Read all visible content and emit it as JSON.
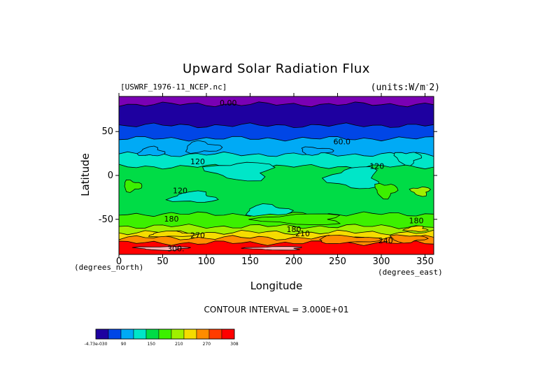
{
  "chart_data": {
    "type": "heatmap",
    "title": "Upward Solar Radiation Flux",
    "file_label": "[USWRF_1976-11_NCEP.nc]",
    "units_label": "(units:W/m^2)",
    "xlabel": "Longitude",
    "ylabel": "Latitude",
    "x_units_note": "(degrees_east)",
    "y_units_note": "(degrees_north)",
    "xlim": [
      0,
      360
    ],
    "ylim": [
      -90,
      90
    ],
    "x_ticks": [
      0,
      50,
      100,
      150,
      200,
      250,
      300,
      350
    ],
    "y_ticks": [
      50,
      0,
      -50
    ],
    "contour_note": "CONTOUR INTERVAL = 3.000E+01",
    "levels": [
      0,
      30,
      60,
      90,
      120,
      150,
      180,
      210,
      240,
      270,
      300
    ],
    "level_colors": [
      "#1e00a0",
      "#0046e6",
      "#00aaf5",
      "#00e6c8",
      "#00dc46",
      "#3cf000",
      "#a0f000",
      "#f5dc00",
      "#ff8c00",
      "#ff3c00",
      "#ff0000"
    ],
    "colorbar_labels": [
      "-4.73e-030",
      "90",
      "150",
      "210",
      "270",
      "308"
    ],
    "bands": [
      {
        "lat_top": 90,
        "lat_bottom": 81,
        "value": 0,
        "color": "#7a00b4"
      },
      {
        "lat_top": 81,
        "lat_bottom": 57,
        "value": 15,
        "color": "#1e00a0"
      },
      {
        "lat_top": 57,
        "lat_bottom": 42,
        "value": 45,
        "color": "#0046e6"
      },
      {
        "lat_top": 42,
        "lat_bottom": 24,
        "value": 75,
        "color": "#00aaf5"
      },
      {
        "lat_top": 24,
        "lat_bottom": 10,
        "value": 105,
        "color": "#00e6c8"
      },
      {
        "lat_top": 10,
        "lat_bottom": -44,
        "value": 135,
        "color": "#00dc46"
      },
      {
        "lat_top": -44,
        "lat_bottom": -58,
        "value": 165,
        "color": "#3cf000"
      },
      {
        "lat_top": -58,
        "lat_bottom": -65,
        "value": 195,
        "color": "#a0f000"
      },
      {
        "lat_top": -65,
        "lat_bottom": -71,
        "value": 225,
        "color": "#f5dc00"
      },
      {
        "lat_top": -71,
        "lat_bottom": -77,
        "value": 255,
        "color": "#ff8c00"
      },
      {
        "lat_top": -77,
        "lat_bottom": -90,
        "value": 285,
        "color": "#ff0000"
      }
    ],
    "patches": [
      {
        "lon": 37,
        "lat": 27,
        "rlon": 14,
        "rlat": 5,
        "value": 75,
        "color": "#00aaf5"
      },
      {
        "lon": 95,
        "lat": 32,
        "rlon": 20,
        "rlat": 6,
        "value": 75,
        "color": "#00aaf5"
      },
      {
        "lon": 225,
        "lat": 28,
        "rlon": 18,
        "rlat": 4,
        "value": 75,
        "color": "#00aaf5"
      },
      {
        "lon": 330,
        "lat": 20,
        "rlon": 14,
        "rlat": 7,
        "value": 105,
        "color": "#00e6c8"
      },
      {
        "lon": 140,
        "lat": 5,
        "rlon": 35,
        "rlat": 10,
        "value": 105,
        "color": "#00e6c8"
      },
      {
        "lon": 270,
        "lat": -3,
        "rlon": 28,
        "rlat": 12,
        "value": 105,
        "color": "#00e6c8"
      },
      {
        "lon": 85,
        "lat": -25,
        "rlon": 25,
        "rlat": 6,
        "value": 105,
        "color": "#00e6c8"
      },
      {
        "lon": 170,
        "lat": -40,
        "rlon": 25,
        "rlat": 6,
        "value": 105,
        "color": "#00e6c8"
      },
      {
        "lon": 15,
        "lat": -12,
        "rlon": 10,
        "rlat": 6,
        "value": 165,
        "color": "#3cf000"
      },
      {
        "lon": 305,
        "lat": -17,
        "rlon": 12,
        "rlat": 8,
        "value": 165,
        "color": "#3cf000"
      },
      {
        "lon": 345,
        "lat": -18,
        "rlon": 10,
        "rlat": 5,
        "value": 195,
        "color": "#a0f000"
      },
      {
        "lon": 210,
        "lat": -50,
        "rlon": 45,
        "rlat": 6,
        "value": 165,
        "color": "#3cf000"
      },
      {
        "lon": 340,
        "lat": -61,
        "rlon": 12,
        "rlat": 3,
        "value": 225,
        "color": "#f5dc00"
      },
      {
        "lon": 60,
        "lat": -67,
        "rlon": 25,
        "rlat": 3,
        "value": 225,
        "color": "#f5dc00"
      },
      {
        "lon": 260,
        "lat": -73,
        "rlon": 35,
        "rlat": 4,
        "value": 255,
        "color": "#ff8c00"
      },
      {
        "lon": 330,
        "lat": -72,
        "rlon": 20,
        "rlat": 4,
        "value": 255,
        "color": "#ff8c00"
      },
      {
        "lon": 50,
        "lat": -83,
        "rlon": 28,
        "rlat": 2,
        "value": 300,
        "color": "#ffb4b4"
      },
      {
        "lon": 180,
        "lat": -83,
        "rlon": 30,
        "rlat": 2,
        "value": 300,
        "color": "#ffb4b4"
      }
    ],
    "contour_labels": [
      {
        "text": "0.00",
        "lon": 125,
        "lat": 82
      },
      {
        "text": "60.0",
        "lon": 255,
        "lat": 38
      },
      {
        "text": "120",
        "lon": 90,
        "lat": 15
      },
      {
        "text": "120",
        "lon": 295,
        "lat": 10
      },
      {
        "text": "120",
        "lon": 70,
        "lat": -18
      },
      {
        "text": "180",
        "lon": 60,
        "lat": -50
      },
      {
        "text": "180",
        "lon": 340,
        "lat": -52
      },
      {
        "text": "180",
        "lon": 200,
        "lat": -62
      },
      {
        "text": "270",
        "lon": 90,
        "lat": -69
      },
      {
        "text": "210",
        "lon": 210,
        "lat": -67
      },
      {
        "text": "240",
        "lon": 305,
        "lat": -75
      },
      {
        "text": "300.",
        "lon": 65,
        "lat": -84
      }
    ]
  }
}
